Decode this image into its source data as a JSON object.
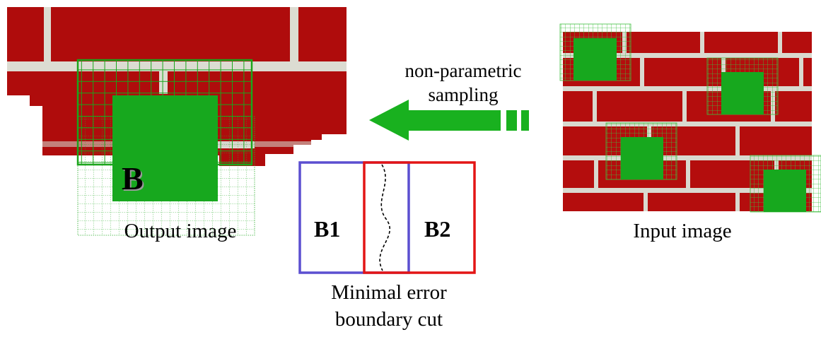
{
  "labels": {
    "output_image": "Output image",
    "input_image": "Input image",
    "sampling_line1": "non-parametric",
    "sampling_line2": "sampling",
    "cut_line1": "Minimal error",
    "cut_line2": "boundary cut",
    "block_b": "B",
    "block_b1": "B1",
    "block_b2": "B2"
  },
  "colors": {
    "brick": "#b50d0d",
    "mortar": "#d9d9cf",
    "patch_green": "#17a81e",
    "arrow_green": "#19b11f",
    "b1_border": "#5b4fd0",
    "b2_border": "#e31515"
  }
}
